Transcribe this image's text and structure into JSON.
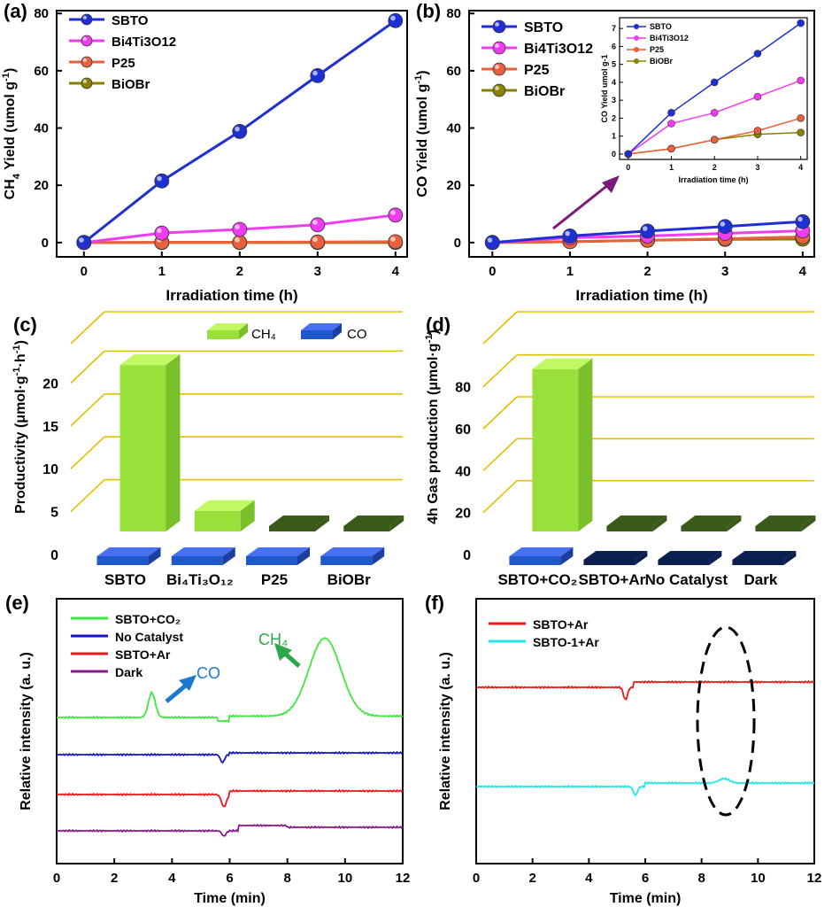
{
  "chart_data": [
    {
      "panel": "(a)",
      "type": "line",
      "xlabel": "Irradiation time (h)",
      "ylabel": "CH4 Yield (umol g-1)",
      "xlim": [
        -0.35,
        4.15
      ],
      "ylim": [
        -5,
        81
      ],
      "xticks": [
        0,
        1,
        2,
        3,
        4
      ],
      "yticks": [
        0,
        20,
        40,
        60,
        80
      ],
      "x": [
        0,
        1,
        2,
        3,
        4
      ],
      "series": [
        {
          "name": "SBTO",
          "color": "#1f2fd6",
          "values": [
            0,
            21.5,
            38.8,
            58.3,
            77.5
          ]
        },
        {
          "name": "Bi4Ti3O12",
          "color": "#f03cf0",
          "values": [
            0,
            3.3,
            4.6,
            6.2,
            9.6
          ]
        },
        {
          "name": "P25",
          "color": "#e8603c",
          "values": [
            0,
            0.1,
            0.1,
            0.2,
            0.3
          ]
        },
        {
          "name": "BiOBr",
          "color": "#8b8000",
          "values": [
            0,
            0,
            0,
            0,
            0
          ]
        }
      ]
    },
    {
      "panel": "(b)",
      "type": "line",
      "xlabel": "Irradiation time (h)",
      "ylabel": "CO Yield (umol g-1)",
      "xlim": [
        -0.3,
        4.15
      ],
      "ylim": [
        -5,
        81
      ],
      "xticks": [
        0,
        1,
        2,
        3,
        4
      ],
      "yticks": [
        0,
        20,
        40,
        60,
        80
      ],
      "x": [
        0,
        1,
        2,
        3,
        4
      ],
      "series": [
        {
          "name": "SBTO",
          "color": "#1f2fd6",
          "values": [
            0,
            2.3,
            4.0,
            5.6,
            7.3
          ]
        },
        {
          "name": "Bi4Ti3O12",
          "color": "#f03cf0",
          "values": [
            0,
            1.7,
            2.3,
            3.2,
            4.1
          ]
        },
        {
          "name": "P25",
          "color": "#e8603c",
          "values": [
            0,
            0.3,
            0.8,
            1.3,
            2.0
          ]
        },
        {
          "name": "BiOBr",
          "color": "#8b8000",
          "values": [
            0,
            0.3,
            0.8,
            1.1,
            1.2
          ]
        }
      ],
      "inset": {
        "xlabel": "Irradiation time (h)",
        "ylabel": "CO Yield umol g-1",
        "xlim": [
          -0.2,
          4.15
        ],
        "ylim": [
          -0.3,
          7.6
        ],
        "xticks": [
          0,
          1,
          2,
          3,
          4
        ],
        "yticks": [
          0,
          1,
          2,
          3,
          4,
          5,
          6,
          7
        ]
      }
    },
    {
      "panel": "(c)",
      "type": "bar3d",
      "ylabel": "Productivity (μmol·g⁻¹·h⁻¹)",
      "yticks": [
        0,
        5,
        10,
        15,
        20
      ],
      "categories": [
        "SBTO",
        "Bi₄Ti₃O₁₂",
        "P25",
        "BiOBr"
      ],
      "series": [
        {
          "name": "CH₄",
          "color": "#99e03a",
          "values": [
            19.4,
            2.4,
            0.1,
            0
          ]
        },
        {
          "name": "CO",
          "color": "#1f58c8",
          "values": [
            1.8,
            1.0,
            0.5,
            0.3
          ]
        }
      ]
    },
    {
      "panel": "(d)",
      "type": "bar3d",
      "ylabel": "4h Gas production (μmol·g⁻¹)",
      "yticks": [
        0,
        20,
        40,
        60,
        80
      ],
      "categories": [
        "SBTO+CO₂",
        "SBTO+Ar",
        "No Catalyst",
        "Dark"
      ],
      "series": [
        {
          "name": "CH₄",
          "color": "#99e03a",
          "values": [
            77.5,
            0,
            0,
            0
          ]
        },
        {
          "name": "CO",
          "color": "#1f58c8",
          "values": [
            7.3,
            0,
            0,
            0
          ]
        }
      ]
    },
    {
      "panel": "(e)",
      "type": "line",
      "xlabel": "Time (min)",
      "ylabel": "Relative intensity (a. u.)",
      "xlim": [
        0,
        12
      ],
      "xticks": [
        0,
        2,
        4,
        6,
        8,
        10,
        12
      ],
      "series": [
        {
          "name": "SBTO+CO₂",
          "color": "#3fe83f"
        },
        {
          "name": "No Catalyst",
          "color": "#1515c8"
        },
        {
          "name": "SBTO+Ar",
          "color": "#e81a1a"
        },
        {
          "name": "Dark",
          "color": "#8a1a8a"
        }
      ],
      "annotations": [
        "CO",
        "CH₄"
      ]
    },
    {
      "panel": "(f)",
      "type": "line",
      "xlabel": "Time (min)",
      "ylabel": "Relative intensity (a. u.)",
      "xlim": [
        0,
        12
      ],
      "xticks": [
        0,
        2,
        4,
        6,
        8,
        10,
        12
      ],
      "series": [
        {
          "name": "SBTO+Ar",
          "color": "#e81a1a"
        },
        {
          "name": "SBTO-1+Ar",
          "color": "#22e8e8"
        }
      ]
    }
  ]
}
